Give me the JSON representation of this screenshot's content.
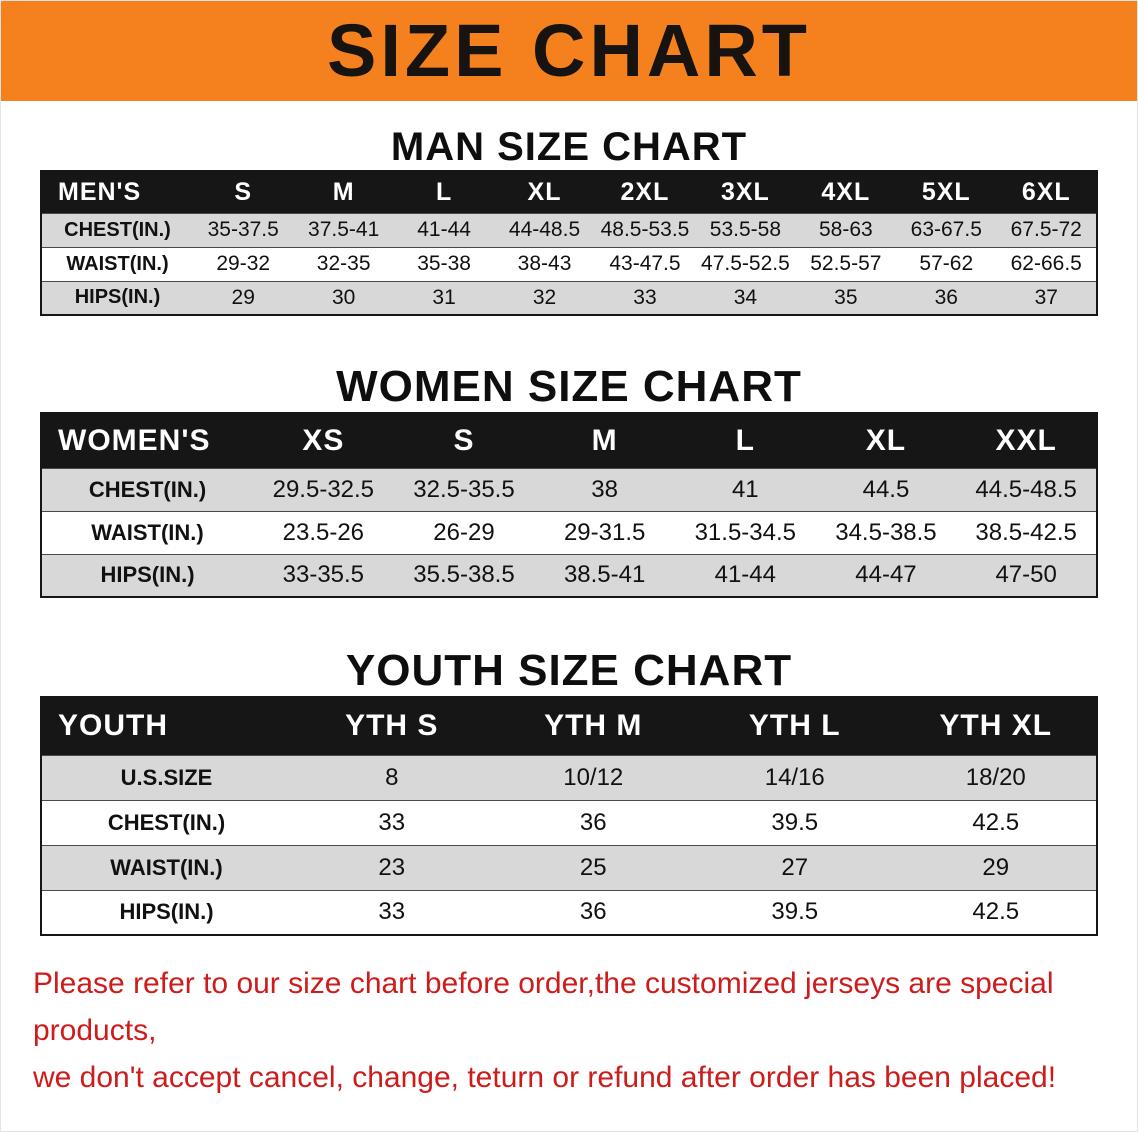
{
  "banner": {
    "title": "SIZE CHART",
    "bg_color": "#F5811E",
    "text_color": "#171310"
  },
  "sections": {
    "men": {
      "heading": "MAN SIZE CHART"
    },
    "women": {
      "heading": "WOMEN SIZE CHART"
    },
    "youth": {
      "heading": "YOUTH SIZE CHART"
    }
  },
  "tables": {
    "men": {
      "header": [
        "MEN'S",
        "S",
        "M",
        "L",
        "XL",
        "2XL",
        "3XL",
        "4XL",
        "5XL",
        "6XL"
      ],
      "rows": [
        {
          "label": "CHEST(IN.)",
          "values": [
            "35-37.5",
            "37.5-41",
            "41-44",
            "44-48.5",
            "48.5-53.5",
            "53.5-58",
            "58-63",
            "63-67.5",
            "67.5-72"
          ]
        },
        {
          "label": "WAIST(IN.)",
          "values": [
            "29-32",
            "32-35",
            "35-38",
            "38-43",
            "43-47.5",
            "47.5-52.5",
            "52.5-57",
            "57-62",
            "62-66.5"
          ]
        },
        {
          "label": "HIPS(IN.)",
          "values": [
            "29",
            "30",
            "31",
            "32",
            "33",
            "34",
            "35",
            "36",
            "37"
          ]
        }
      ]
    },
    "women": {
      "header": [
        "WOMEN'S",
        "XS",
        "S",
        "M",
        "L",
        "XL",
        "XXL"
      ],
      "rows": [
        {
          "label": "CHEST(IN.)",
          "values": [
            "29.5-32.5",
            "32.5-35.5",
            "38",
            "41",
            "44.5",
            "44.5-48.5"
          ]
        },
        {
          "label": "WAIST(IN.)",
          "values": [
            "23.5-26",
            "26-29",
            "29-31.5",
            "31.5-34.5",
            "34.5-38.5",
            "38.5-42.5"
          ]
        },
        {
          "label": "HIPS(IN.)",
          "values": [
            "33-35.5",
            "35.5-38.5",
            "38.5-41",
            "41-44",
            "44-47",
            "47-50"
          ]
        }
      ]
    },
    "youth": {
      "header": [
        "YOUTH",
        "YTH S",
        "YTH M",
        "YTH L",
        "YTH XL"
      ],
      "rows": [
        {
          "label": "U.S.SIZE",
          "values": [
            "8",
            "10/12",
            "14/16",
            "18/20"
          ]
        },
        {
          "label": "CHEST(IN.)",
          "values": [
            "33",
            "36",
            "39.5",
            "42.5"
          ]
        },
        {
          "label": "WAIST(IN.)",
          "values": [
            "23",
            "25",
            "27",
            "29"
          ]
        },
        {
          "label": "HIPS(IN.)",
          "values": [
            "33",
            "36",
            "39.5",
            "42.5"
          ]
        }
      ]
    }
  },
  "footer": {
    "line1": "Please refer to our size chart before order,the customized jerseys are special products,",
    "line2": "we don't accept cancel, change, teturn or refund after order has been placed!",
    "text_color": "#CE1B1B",
    "row_shade_color": "#d8d8d8",
    "header_bg_color": "#161616"
  }
}
